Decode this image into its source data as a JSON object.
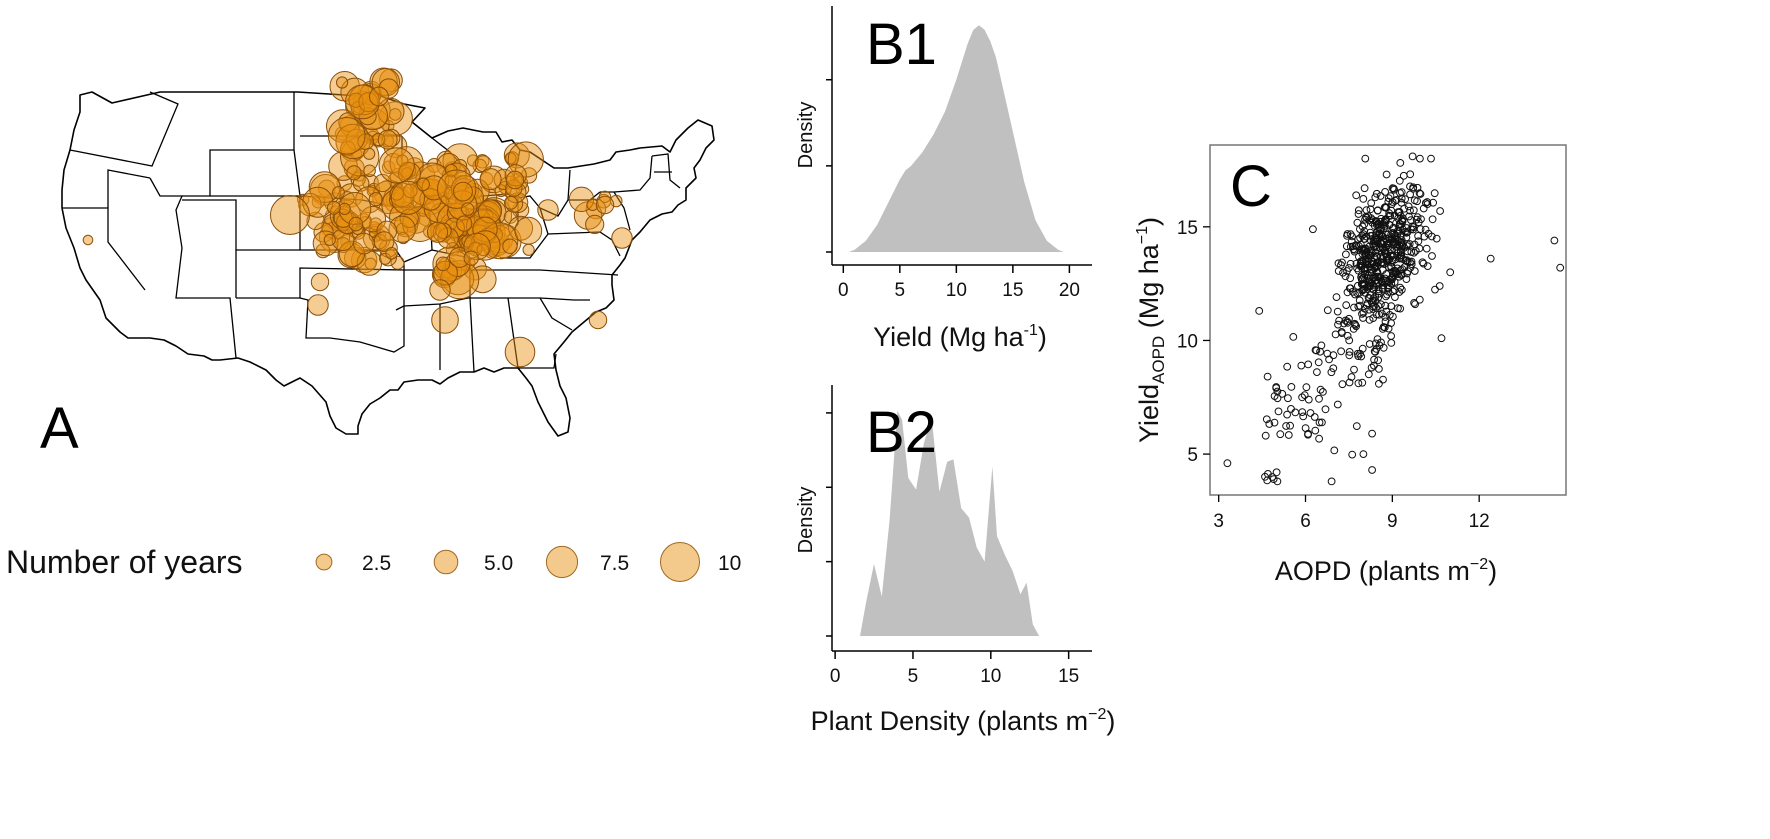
{
  "colors": {
    "site_fill": "#e8900f",
    "legend_fill": "#f3c98c",
    "density_fill": "#c0c0c0",
    "axis": "#000000"
  },
  "panelA": {
    "letter": "A",
    "legend": {
      "title": "Number of years",
      "entries": [
        {
          "label": "2.5",
          "years": 2.5
        },
        {
          "label": "5.0",
          "years": 5.0
        },
        {
          "label": "7.5",
          "years": 7.5
        },
        {
          "label": "10",
          "years": 10
        }
      ]
    }
  },
  "chart_data": [
    {
      "id": "B1",
      "type": "area",
      "title": "B1",
      "xlabel_main": "Yield (Mg ha",
      "xlabel_sup": "-1",
      "xlabel_end": ")",
      "ylabel": "Density",
      "xlim": [
        -1,
        22
      ],
      "ylim": [
        0,
        1.05
      ],
      "xticks": [
        0,
        5,
        10,
        15,
        20
      ],
      "x": [
        0.5,
        1,
        2,
        3,
        4,
        5,
        5.5,
        6,
        7,
        8,
        9,
        10,
        11,
        11.5,
        12,
        12.5,
        13,
        13.5,
        14,
        15,
        16,
        17,
        18,
        19,
        19.5
      ],
      "y": [
        0.0,
        0.01,
        0.05,
        0.12,
        0.22,
        0.32,
        0.36,
        0.38,
        0.44,
        0.52,
        0.62,
        0.76,
        0.92,
        0.98,
        1.0,
        0.98,
        0.93,
        0.86,
        0.75,
        0.53,
        0.31,
        0.14,
        0.05,
        0.01,
        0.0
      ]
    },
    {
      "id": "B2",
      "type": "area",
      "title": "B2",
      "xlabel_main": "Plant Density (plants m",
      "xlabel_sup": "−2",
      "xlabel_end": ")",
      "ylabel": "Density",
      "xlim": [
        -0.2,
        16.5
      ],
      "ylim": [
        0,
        1.05
      ],
      "xticks": [
        0,
        5,
        10,
        15
      ],
      "x": [
        1.6,
        2,
        2.5,
        3,
        3.5,
        4,
        4.3,
        4.7,
        5.2,
        5.7,
        6.2,
        6.7,
        7.2,
        7.6,
        8.1,
        8.6,
        9.1,
        9.6,
        10.1,
        10.4,
        10.9,
        11.4,
        11.9,
        12.3,
        12.7,
        13.1
      ],
      "y": [
        0.0,
        0.15,
        0.31,
        0.17,
        0.5,
        0.97,
        0.93,
        0.68,
        0.63,
        0.83,
        0.94,
        0.62,
        0.75,
        0.76,
        0.55,
        0.51,
        0.38,
        0.32,
        0.73,
        0.43,
        0.35,
        0.28,
        0.18,
        0.23,
        0.05,
        0.0
      ]
    },
    {
      "id": "C",
      "type": "scatter",
      "title": "C",
      "xlabel_main": "AOPD (plants m",
      "xlabel_sup": "−2",
      "xlabel_end": ")",
      "ylabel_main": "Yield",
      "ylabel_sub": "AOPD",
      "ylabel_rest": " (Mg ha",
      "ylabel_sup": "−1",
      "ylabel_end": ")",
      "xlim": [
        2.7,
        15
      ],
      "ylim": [
        3.2,
        18.6
      ],
      "xticks": [
        3,
        6,
        9,
        12
      ],
      "yticks": [
        5,
        10,
        15
      ]
    }
  ]
}
